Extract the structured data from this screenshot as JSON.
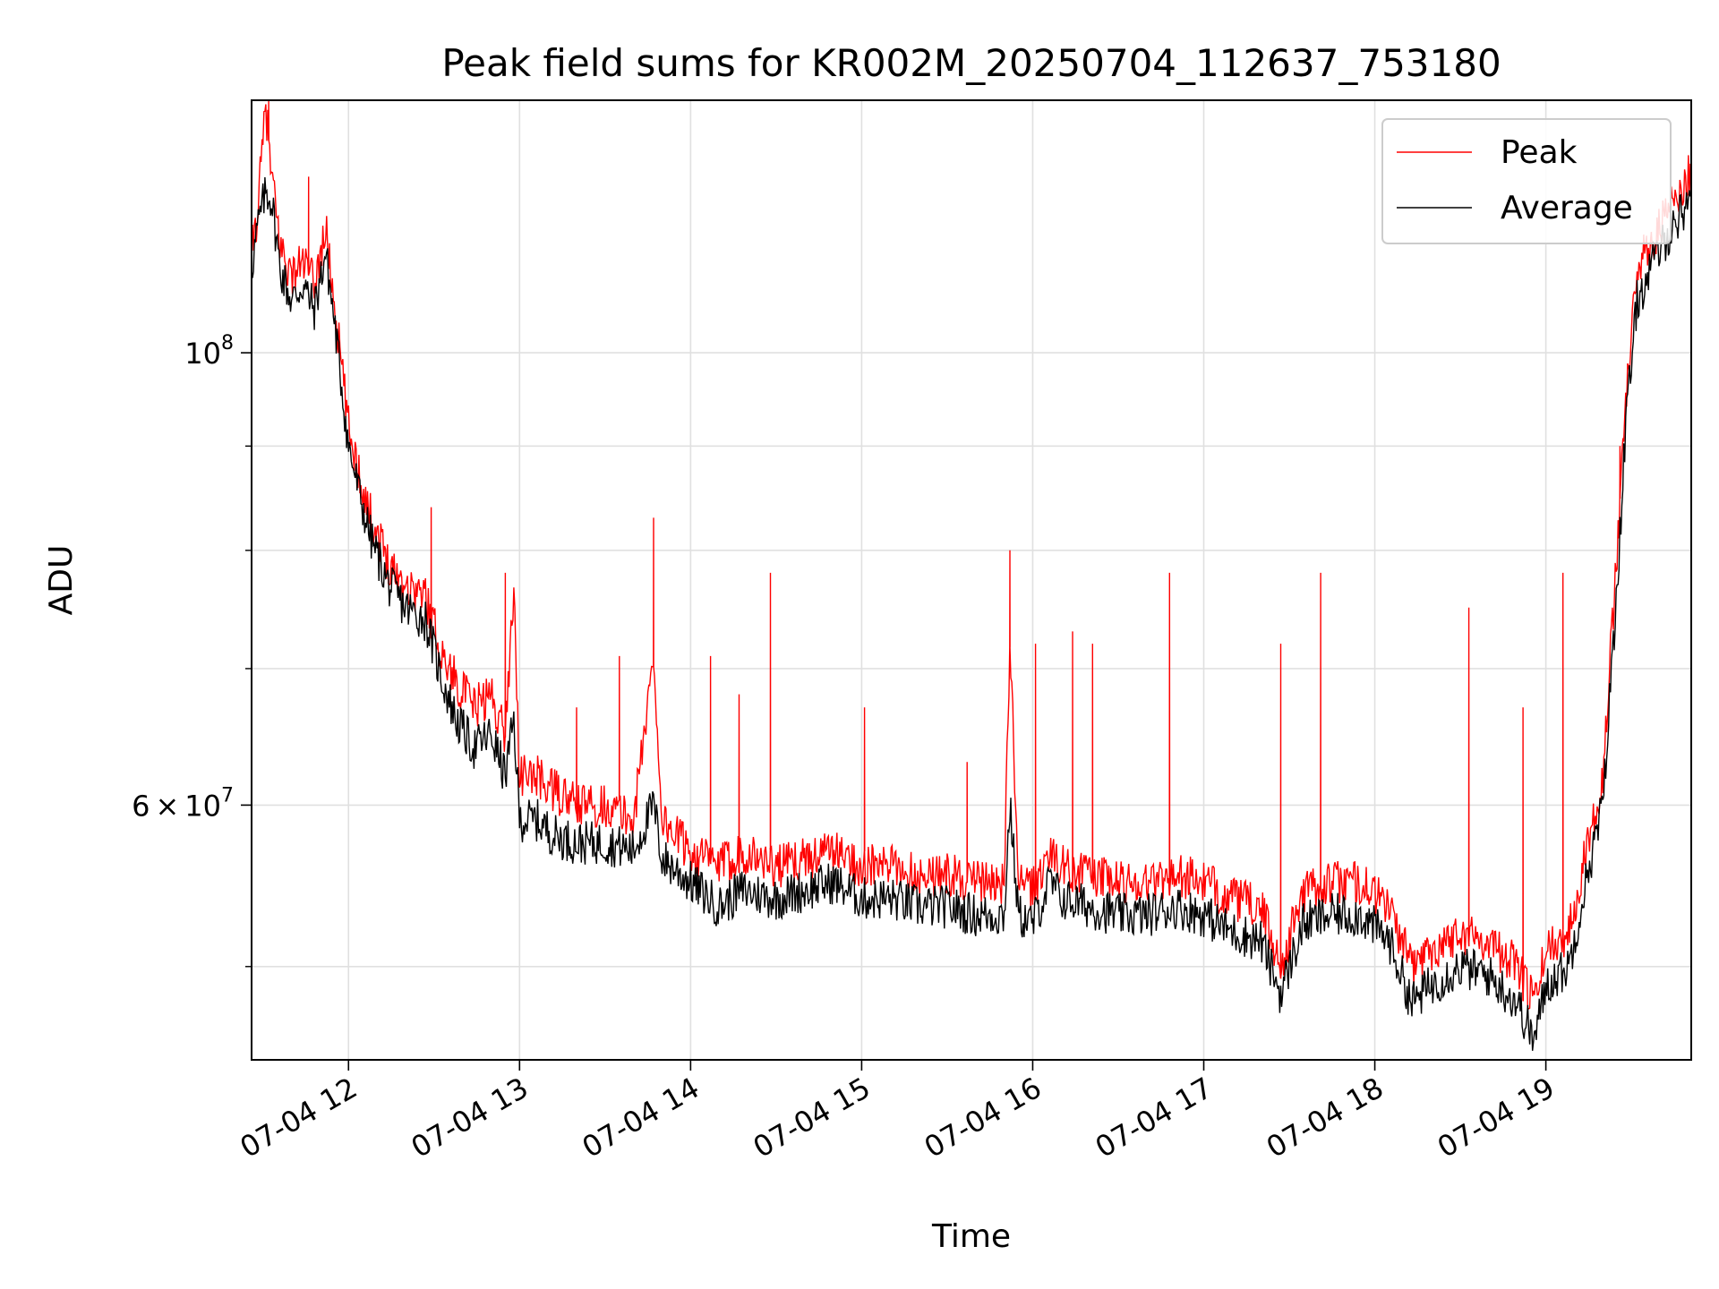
{
  "chart_data": {
    "type": "line",
    "title": "Peak field sums for KR002M_20250704_112637_753180",
    "xlabel": "Time",
    "ylabel": "ADU",
    "yscale": "log",
    "grid": true,
    "legend_position": "top-right",
    "xlim": [
      "2025-07-04 11:26",
      "2025-07-04 19:51"
    ],
    "ylim": [
      45000000,
      133000000
    ],
    "x_ticks": [
      {
        "value": "2025-07-04 12:00",
        "label": "07-04 12"
      },
      {
        "value": "2025-07-04 13:00",
        "label": "07-04 13"
      },
      {
        "value": "2025-07-04 14:00",
        "label": "07-04 14"
      },
      {
        "value": "2025-07-04 15:00",
        "label": "07-04 15"
      },
      {
        "value": "2025-07-04 16:00",
        "label": "07-04 16"
      },
      {
        "value": "2025-07-04 17:00",
        "label": "07-04 17"
      },
      {
        "value": "2025-07-04 18:00",
        "label": "07-04 18"
      },
      {
        "value": "2025-07-04 19:00",
        "label": "07-04 19"
      }
    ],
    "y_ticks_major": [
      {
        "value": 100000000,
        "base": "10",
        "exp": "8"
      },
      {
        "value": 60000000,
        "mantissa": "6",
        "base": "10",
        "exp": "7"
      }
    ],
    "y_ticks_minor": [
      50000000,
      70000000,
      80000000,
      90000000
    ],
    "series": [
      {
        "name": "Peak",
        "color": "#ff0000",
        "points": [
          [
            "11:26",
            112000000
          ],
          [
            "11:28",
            117000000
          ],
          [
            "11:31",
            132000000
          ],
          [
            "11:33",
            122000000
          ],
          [
            "11:36",
            113000000
          ],
          [
            "11:40",
            109000000
          ],
          [
            "11:44",
            111000000
          ],
          [
            "11:48",
            108000000
          ],
          [
            "11:52",
            115000000
          ],
          [
            "11:56",
            103000000
          ],
          [
            "12:00",
            92000000
          ],
          [
            "12:04",
            87000000
          ],
          [
            "12:08",
            83000000
          ],
          [
            "12:14",
            79000000
          ],
          [
            "12:20",
            77000000
          ],
          [
            "12:27",
            76000000
          ],
          [
            "12:33",
            71000000
          ],
          [
            "12:38",
            69000000
          ],
          [
            "12:44",
            67000000
          ],
          [
            "12:50",
            68000000
          ],
          [
            "12:55",
            65000000
          ],
          [
            "12:58",
            77000000
          ],
          [
            "13:00",
            62000000
          ],
          [
            "13:06",
            62000000
          ],
          [
            "13:12",
            61000000
          ],
          [
            "13:20",
            60000000
          ],
          [
            "13:30",
            60000000
          ],
          [
            "13:40",
            59000000
          ],
          [
            "13:47",
            71000000
          ],
          [
            "13:50",
            59000000
          ],
          [
            "14:00",
            57000000
          ],
          [
            "14:10",
            56000000
          ],
          [
            "14:18",
            57000000
          ],
          [
            "14:30",
            56000000
          ],
          [
            "14:40",
            56500000
          ],
          [
            "14:50",
            57000000
          ],
          [
            "15:00",
            56000000
          ],
          [
            "15:10",
            56000000
          ],
          [
            "15:20",
            55500000
          ],
          [
            "15:30",
            55500000
          ],
          [
            "15:40",
            55000000
          ],
          [
            "15:50",
            55000000
          ],
          [
            "15:52",
            72000000
          ],
          [
            "15:55",
            55000000
          ],
          [
            "16:00",
            54500000
          ],
          [
            "16:06",
            57000000
          ],
          [
            "16:10",
            56000000
          ],
          [
            "16:20",
            55500000
          ],
          [
            "16:30",
            55000000
          ],
          [
            "16:40",
            55000000
          ],
          [
            "16:50",
            55500000
          ],
          [
            "17:00",
            55000000
          ],
          [
            "17:10",
            54000000
          ],
          [
            "17:20",
            53500000
          ],
          [
            "17:27",
            50000000
          ],
          [
            "17:35",
            54500000
          ],
          [
            "17:45",
            55000000
          ],
          [
            "17:55",
            55000000
          ],
          [
            "18:05",
            53500000
          ],
          [
            "18:13",
            50000000
          ],
          [
            "18:20",
            51000000
          ],
          [
            "18:30",
            52000000
          ],
          [
            "18:40",
            51500000
          ],
          [
            "18:50",
            50000000
          ],
          [
            "18:56",
            48000000
          ],
          [
            "19:00",
            51000000
          ],
          [
            "19:08",
            52000000
          ],
          [
            "19:14",
            57000000
          ],
          [
            "19:20",
            62000000
          ],
          [
            "19:25",
            80000000
          ],
          [
            "19:28",
            95000000
          ],
          [
            "19:32",
            110000000
          ],
          [
            "19:38",
            114000000
          ],
          [
            "19:44",
            118000000
          ],
          [
            "19:49",
            121000000
          ],
          [
            "19:51",
            123000000
          ]
        ],
        "spikes": [
          [
            "11:32",
            133000000
          ],
          [
            "11:46",
            122000000
          ],
          [
            "12:29",
            84000000
          ],
          [
            "12:55",
            78000000
          ],
          [
            "13:20",
            67000000
          ],
          [
            "13:35",
            71000000
          ],
          [
            "13:47",
            83000000
          ],
          [
            "14:07",
            71000000
          ],
          [
            "14:17",
            68000000
          ],
          [
            "14:28",
            78000000
          ],
          [
            "15:01",
            67000000
          ],
          [
            "15:37",
            63000000
          ],
          [
            "15:52",
            80000000
          ],
          [
            "16:01",
            72000000
          ],
          [
            "16:14",
            73000000
          ],
          [
            "16:21",
            72000000
          ],
          [
            "16:48",
            78000000
          ],
          [
            "17:27",
            72000000
          ],
          [
            "17:41",
            78000000
          ],
          [
            "18:33",
            75000000
          ],
          [
            "18:52",
            67000000
          ],
          [
            "19:06",
            78000000
          ],
          [
            "19:26",
            90000000
          ]
        ]
      },
      {
        "name": "Average",
        "color": "#000000",
        "points": [
          [
            "11:26",
            110000000
          ],
          [
            "11:28",
            115000000
          ],
          [
            "11:31",
            120000000
          ],
          [
            "11:33",
            119000000
          ],
          [
            "11:36",
            110000000
          ],
          [
            "11:40",
            106000000
          ],
          [
            "11:44",
            108000000
          ],
          [
            "11:48",
            105000000
          ],
          [
            "11:52",
            112000000
          ],
          [
            "11:56",
            101000000
          ],
          [
            "12:00",
            90000000
          ],
          [
            "12:04",
            85000000
          ],
          [
            "12:08",
            81000000
          ],
          [
            "12:14",
            77000000
          ],
          [
            "12:20",
            75000000
          ],
          [
            "12:27",
            74000000
          ],
          [
            "12:33",
            69000000
          ],
          [
            "12:38",
            66000000
          ],
          [
            "12:44",
            64000000
          ],
          [
            "12:50",
            65000000
          ],
          [
            "12:55",
            62000000
          ],
          [
            "12:58",
            66000000
          ],
          [
            "13:00",
            59000000
          ],
          [
            "13:06",
            59000000
          ],
          [
            "13:12",
            58000000
          ],
          [
            "13:20",
            57500000
          ],
          [
            "13:30",
            57500000
          ],
          [
            "13:40",
            57000000
          ],
          [
            "13:47",
            60000000
          ],
          [
            "13:50",
            56500000
          ],
          [
            "14:00",
            55000000
          ],
          [
            "14:10",
            53500000
          ],
          [
            "14:18",
            54500000
          ],
          [
            "14:30",
            54000000
          ],
          [
            "14:40",
            54500000
          ],
          [
            "14:50",
            55000000
          ],
          [
            "15:00",
            54000000
          ],
          [
            "15:10",
            54000000
          ],
          [
            "15:20",
            53500000
          ],
          [
            "15:30",
            53500000
          ],
          [
            "15:40",
            53000000
          ],
          [
            "15:50",
            53000000
          ],
          [
            "15:52",
            60000000
          ],
          [
            "15:55",
            53000000
          ],
          [
            "16:00",
            52500000
          ],
          [
            "16:06",
            55000000
          ],
          [
            "16:10",
            54000000
          ],
          [
            "16:20",
            53500000
          ],
          [
            "16:30",
            53000000
          ],
          [
            "16:40",
            53000000
          ],
          [
            "16:50",
            53500000
          ],
          [
            "17:00",
            53000000
          ],
          [
            "17:10",
            52000000
          ],
          [
            "17:20",
            51500000
          ],
          [
            "17:27",
            48500000
          ],
          [
            "17:35",
            52500000
          ],
          [
            "17:45",
            53000000
          ],
          [
            "17:55",
            53000000
          ],
          [
            "18:05",
            51500000
          ],
          [
            "18:13",
            48000000
          ],
          [
            "18:20",
            49000000
          ],
          [
            "18:30",
            50000000
          ],
          [
            "18:40",
            49500000
          ],
          [
            "18:50",
            48000000
          ],
          [
            "18:56",
            46000000
          ],
          [
            "19:00",
            49000000
          ],
          [
            "19:08",
            50000000
          ],
          [
            "19:14",
            55000000
          ],
          [
            "19:20",
            60000000
          ],
          [
            "19:25",
            77000000
          ],
          [
            "19:28",
            92000000
          ],
          [
            "19:32",
            106000000
          ],
          [
            "19:38",
            111000000
          ],
          [
            "19:44",
            115000000
          ],
          [
            "19:49",
            118000000
          ],
          [
            "19:51",
            120000000
          ]
        ]
      }
    ]
  }
}
